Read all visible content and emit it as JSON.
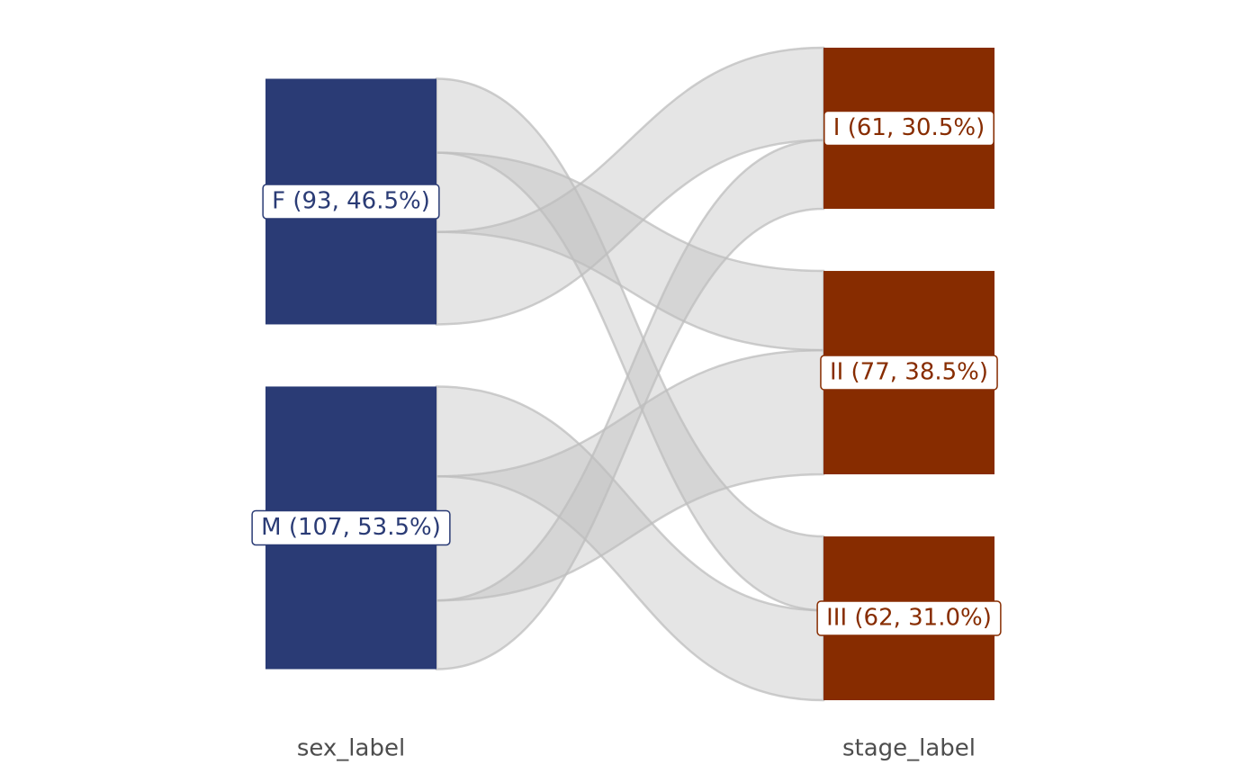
{
  "chart_data": {
    "type": "alluvial",
    "axes": [
      {
        "label": "sex_label",
        "color": "#2a3b75",
        "nodes": [
          {
            "label": "F (93, 46.5%)",
            "value": 93
          },
          {
            "label": "M (107, 53.5%)",
            "value": 107
          }
        ]
      },
      {
        "label": "stage_label",
        "color": "#872c00",
        "nodes": [
          {
            "label": "I (61, 30.5%)",
            "value": 61
          },
          {
            "label": "II (77, 38.5%)",
            "value": 77
          },
          {
            "label": "III (62, 31.0%)",
            "value": 62
          }
        ]
      }
    ],
    "flows": [
      {
        "from": 0,
        "to": 0,
        "value": 35
      },
      {
        "from": 0,
        "to": 1,
        "value": 30
      },
      {
        "from": 0,
        "to": 2,
        "value": 28
      },
      {
        "from": 1,
        "to": 0,
        "value": 26
      },
      {
        "from": 1,
        "to": 1,
        "value": 47
      },
      {
        "from": 1,
        "to": 2,
        "value": 34
      }
    ],
    "flow_color": "#bdbdbd"
  }
}
